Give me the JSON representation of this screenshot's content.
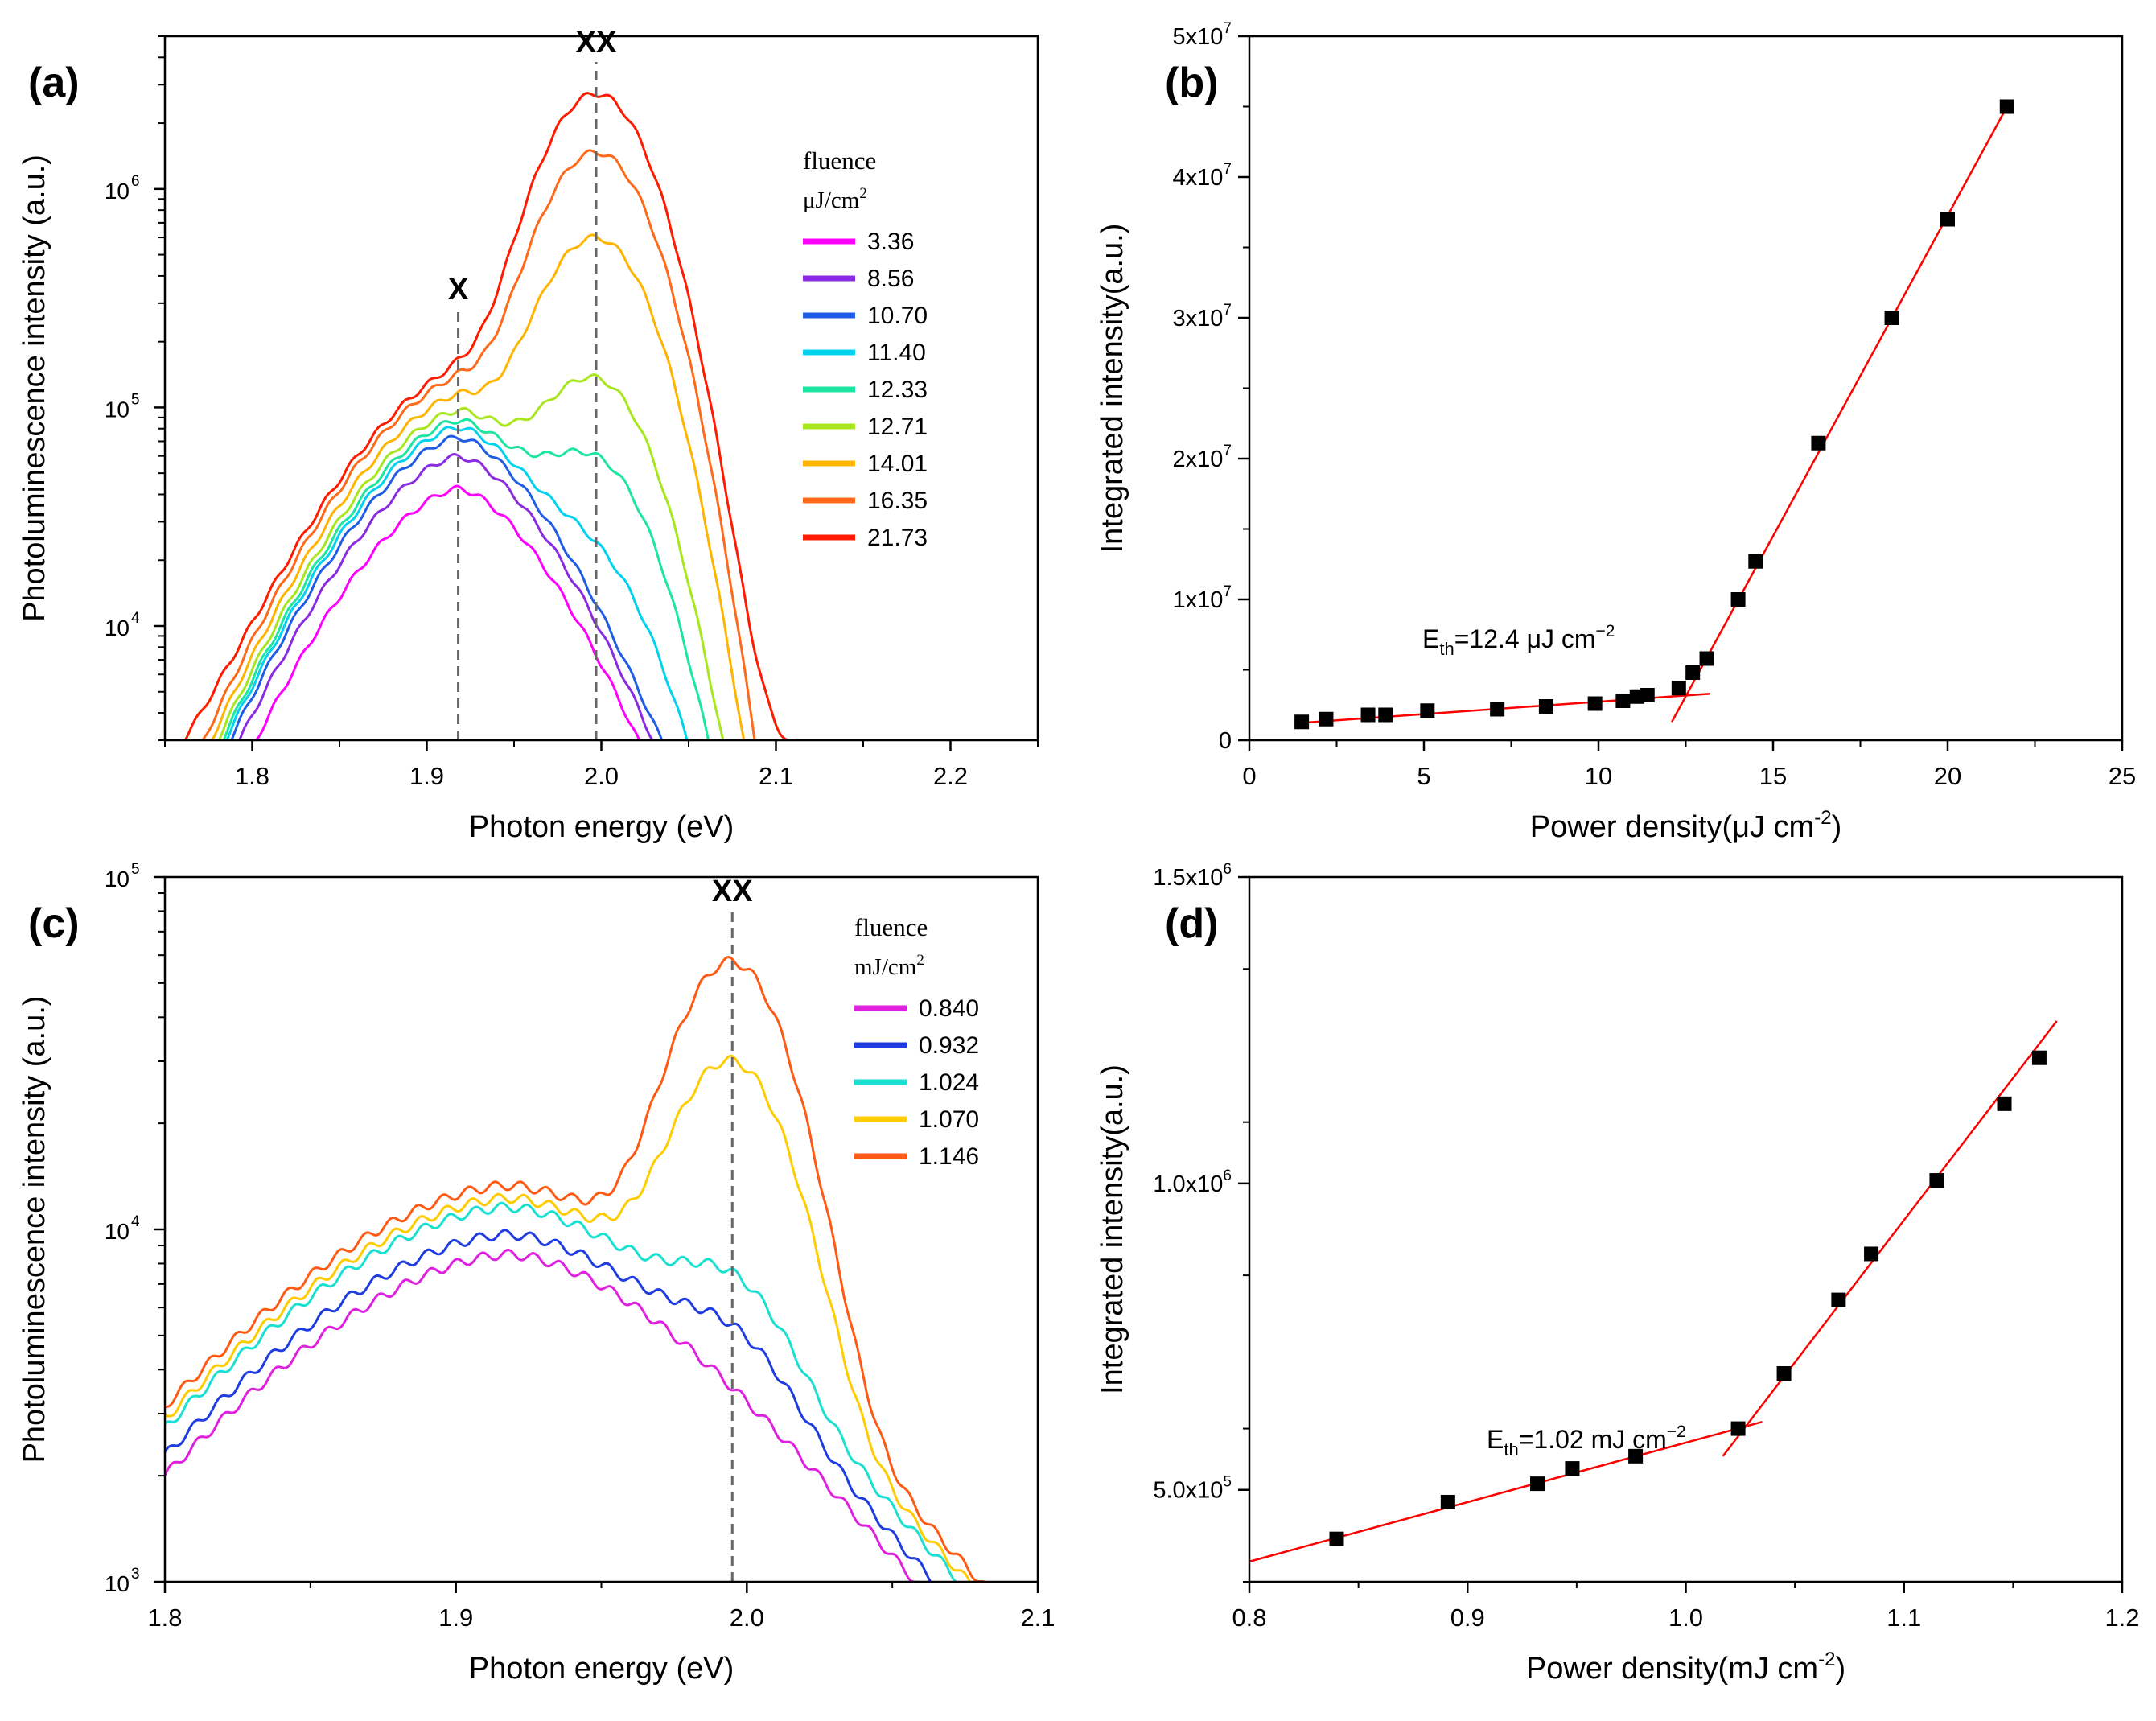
{
  "chart_data": [
    {
      "id": "a",
      "panel_label": "(a)",
      "type": "line",
      "yscale": "log",
      "xlabel": "Photon energy (eV)",
      "ylabel": "Photoluminescence intensity (a.u.)",
      "xlim": [
        1.75,
        2.25
      ],
      "ylim": [
        3000,
        5000000
      ],
      "xticks": [
        1.8,
        1.9,
        2.0,
        2.1,
        2.2
      ],
      "xtick_labels": [
        "1.8",
        "1.9",
        "2.0",
        "2.1",
        "2.2"
      ],
      "yticks": [
        10000,
        100000,
        1000000
      ],
      "ytick_labels": [
        {
          "base": "10",
          "exp": "4"
        },
        {
          "base": "10",
          "exp": "5"
        },
        {
          "base": "10",
          "exp": "6"
        }
      ],
      "annotations": [
        {
          "text": "X",
          "x": 1.918
        },
        {
          "text": "XX",
          "x": 1.997
        }
      ],
      "legend": {
        "title": "fluence",
        "unit": "μJ/cm",
        "unit_sup": "2",
        "position": "right"
      },
      "series": [
        {
          "name": "3.36",
          "color": "#ff00ff",
          "A": 42000,
          "B": 0,
          "C": 0
        },
        {
          "name": "8.56",
          "color": "#8a2be2",
          "A": 59000,
          "B": 0,
          "C": 0
        },
        {
          "name": "10.70",
          "color": "#1f5de6",
          "A": 72000,
          "B": 0,
          "C": 0
        },
        {
          "name": "11.40",
          "color": "#00d2f0",
          "A": 80000,
          "B": 10000,
          "C": 0
        },
        {
          "name": "12.33",
          "color": "#1ee6a0",
          "A": 86000,
          "B": 45000,
          "C": 0
        },
        {
          "name": "12.71",
          "color": "#a8e61e",
          "A": 95000,
          "B": 120000,
          "C": 0
        },
        {
          "name": "14.01",
          "color": "#ffb400",
          "A": 110000,
          "B": 580000,
          "C": 0
        },
        {
          "name": "16.35",
          "color": "#ff6a1a",
          "A": 130000,
          "B": 1450000,
          "C": 0
        },
        {
          "name": "21.73",
          "color": "#ff1a00",
          "A": 140000,
          "B": 2700000,
          "C": 3000
        }
      ]
    },
    {
      "id": "b",
      "panel_label": "(b)",
      "type": "scatter",
      "xlabel": "Power density(μJ cm",
      "xlabel_sup": "-2",
      "xlabel_end": ")",
      "ylabel": "Integrated intensity(a.u.)",
      "xlim": [
        0,
        25
      ],
      "ylim": [
        0,
        50000000
      ],
      "xticks": [
        0,
        5,
        10,
        15,
        20,
        25
      ],
      "xtick_labels": [
        "0",
        "5",
        "10",
        "15",
        "20",
        "25"
      ],
      "yticks": [
        0,
        10000000,
        20000000,
        30000000,
        40000000,
        50000000
      ],
      "ytick_labels": [
        {
          "base": "0",
          "exp": ""
        },
        {
          "base": "1x10",
          "exp": "7"
        },
        {
          "base": "2x10",
          "exp": "7"
        },
        {
          "base": "3x10",
          "exp": "7"
        },
        {
          "base": "4x10",
          "exp": "7"
        },
        {
          "base": "5x10",
          "exp": "7"
        }
      ],
      "annotation": {
        "prefix": "E",
        "sub": "th",
        "value": "=12.4 μJ cm",
        "sup": "−2"
      },
      "points": {
        "x": [
          1.5,
          2.2,
          3.4,
          3.9,
          5.1,
          7.1,
          8.5,
          9.9,
          10.7,
          11.1,
          11.4,
          12.3,
          12.7,
          13.1,
          14.0,
          14.5,
          16.3,
          18.4,
          20.0,
          21.7
        ],
        "y": [
          1300000,
          1500000,
          1800000,
          1800000,
          2100000,
          2200000,
          2400000,
          2600000,
          2800000,
          3100000,
          3200000,
          3700000,
          4800000,
          5800000,
          10000000,
          12700000,
          21100000,
          30000000,
          37000000,
          45000000
        ]
      },
      "fits": [
        {
          "x": [
            1.3,
            13.2
          ],
          "y": [
            1200000,
            3300000
          ],
          "color": "#ff0000"
        },
        {
          "x": [
            12.1,
            21.7
          ],
          "y": [
            1300000,
            45000000
          ],
          "color": "#ff0000"
        }
      ]
    },
    {
      "id": "c",
      "panel_label": "(c)",
      "type": "line",
      "yscale": "log",
      "xlabel": "Photon energy (eV)",
      "ylabel": "Photoluminescence intensity (a.u.)",
      "xlim": [
        1.8,
        2.1
      ],
      "ylim": [
        1000,
        100000
      ],
      "xticks": [
        1.8,
        1.9,
        2.0,
        2.1
      ],
      "xtick_labels": [
        "1.8",
        "1.9",
        "2.0",
        "2.1"
      ],
      "yticks": [
        1000,
        10000,
        100000
      ],
      "ytick_labels": [
        {
          "base": "10",
          "exp": "3"
        },
        {
          "base": "10",
          "exp": "4"
        },
        {
          "base": "10",
          "exp": "5"
        }
      ],
      "annotations": [
        {
          "text": "XX",
          "x": 1.995
        }
      ],
      "legend": {
        "title": "fluence",
        "unit": "mJ/cm",
        "unit_sup": "2",
        "position": "right"
      },
      "series": [
        {
          "name": "0.840",
          "color": "#e020e0",
          "A": 7200,
          "B": 0,
          "C": 0
        },
        {
          "name": "0.932",
          "color": "#1f3ce0",
          "A": 8200,
          "B": 1300,
          "C": 0
        },
        {
          "name": "1.024",
          "color": "#19e0d0",
          "A": 9800,
          "B": 2700,
          "C": 0
        },
        {
          "name": "1.070",
          "color": "#ffcc00",
          "A": 10400,
          "B": 25000,
          "C": 0
        },
        {
          "name": "1.146",
          "color": "#ff5a14",
          "A": 11300,
          "B": 52000,
          "C": 0
        }
      ]
    },
    {
      "id": "d",
      "panel_label": "(d)",
      "type": "scatter",
      "xlabel": "Power density(mJ cm",
      "xlabel_sup": "-2",
      "xlabel_end": ")",
      "ylabel": "Integrated intensity(a.u.)",
      "xlim": [
        0.8,
        1.2
      ],
      "ylim": [
        350000,
        1500000
      ],
      "xticks": [
        0.8,
        0.9,
        1.0,
        1.1,
        1.2
      ],
      "xtick_labels": [
        "0.8",
        "0.9",
        "1.0",
        "1.1",
        "1.2"
      ],
      "yticks": [
        500000,
        1000000,
        1500000
      ],
      "ytick_labels": [
        {
          "base": "5.0x10",
          "exp": "5"
        },
        {
          "base": "1.0x10",
          "exp": "6"
        },
        {
          "base": "1.5x10",
          "exp": "6"
        }
      ],
      "annotation": {
        "prefix": "E",
        "sub": "th",
        "value": "=1.02 mJ cm",
        "sup": "−2"
      },
      "points": {
        "x": [
          0.84,
          0.891,
          0.932,
          0.948,
          0.977,
          1.024,
          1.045,
          1.07,
          1.085,
          1.115,
          1.146,
          1.162
        ],
        "y": [
          420000,
          480000,
          510000,
          535000,
          555000,
          600000,
          690000,
          810000,
          885000,
          1005000,
          1130000,
          1205000
        ]
      },
      "fits": [
        {
          "x": [
            0.8,
            1.035
          ],
          "y": [
            383000,
            611000
          ],
          "color": "#ff0000"
        },
        {
          "x": [
            1.017,
            1.17
          ],
          "y": [
            555000,
            1265000
          ],
          "color": "#ff0000"
        }
      ]
    }
  ]
}
